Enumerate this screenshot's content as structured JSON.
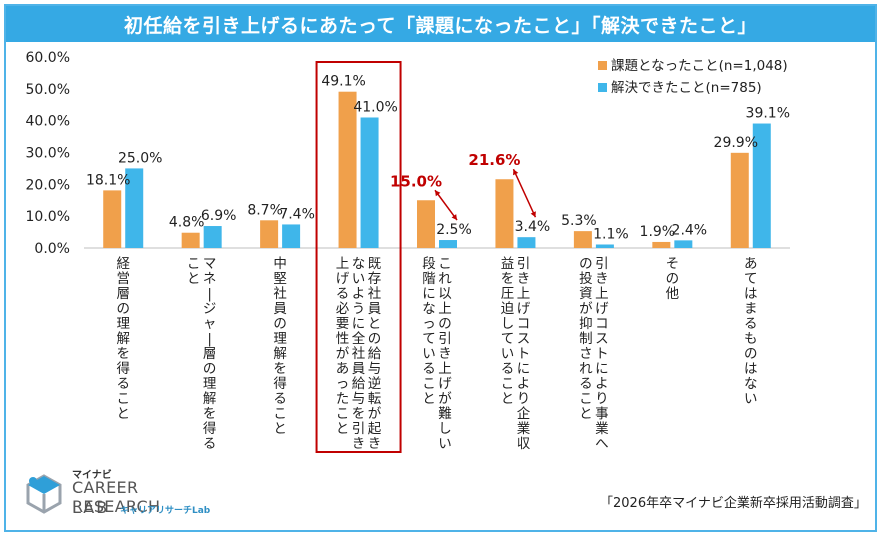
{
  "title": "初任給を引き上げるにあたって「課題になったこと」「解決できたこと」",
  "source": "「2026年卒マイナビ企業新卒採用活動調査」",
  "logo": {
    "small": "マイナビ",
    "line1": "CAREER RESEARCH",
    "line2": "LAB",
    "kana": "キャリアリサーチLab"
  },
  "colors": {
    "orange": "#f0a04b",
    "blue": "#3fb6ea",
    "highlight": "#c00000",
    "title_bg": "#35a9e4"
  },
  "chart_data": {
    "type": "bar",
    "ylim": [
      0,
      60
    ],
    "yticks": [
      "0.0%",
      "10.0%",
      "20.0%",
      "30.0%",
      "40.0%",
      "50.0%",
      "60.0%"
    ],
    "categories": [
      [
        "経営層の理解を得ること"
      ],
      [
        "マネージャー層の理解を得る",
        "こと"
      ],
      [
        "中堅社員の理解を得ること"
      ],
      [
        "既存社員との給与逆転が起き",
        "ないように全社員給与を引き",
        "上げる必要性があったこと"
      ],
      [
        "これ以上の引き上げが難しい",
        "段階になっていること"
      ],
      [
        "引き上げコストにより企業収",
        "益を圧迫していること"
      ],
      [
        "引き上げコストにより事業へ",
        "の投資が抑制されること"
      ],
      [
        "その他"
      ],
      [
        "あてはまるものはない"
      ]
    ],
    "series": [
      {
        "name": "課題となったこと(n=1,048)",
        "values": [
          18.1,
          4.8,
          8.7,
          49.1,
          15.0,
          21.6,
          5.3,
          1.9,
          29.9
        ],
        "labels": [
          "18.1%",
          "4.8%",
          "8.7%",
          "49.1%",
          "15.0%",
          "21.6%",
          "5.3%",
          "1.9%",
          "29.9%"
        ]
      },
      {
        "name": "解決できたこと(n=785)",
        "values": [
          25.0,
          6.9,
          7.4,
          41.0,
          2.5,
          3.4,
          1.1,
          2.4,
          39.1
        ],
        "labels": [
          "25.0%",
          "6.9%",
          "7.4%",
          "41.0%",
          "2.5%",
          "3.4%",
          "1.1%",
          "2.4%",
          "39.1%"
        ]
      }
    ],
    "highlighted_category": 3,
    "highlighted_labels": [
      4,
      5
    ],
    "legend_position": "top-right"
  }
}
